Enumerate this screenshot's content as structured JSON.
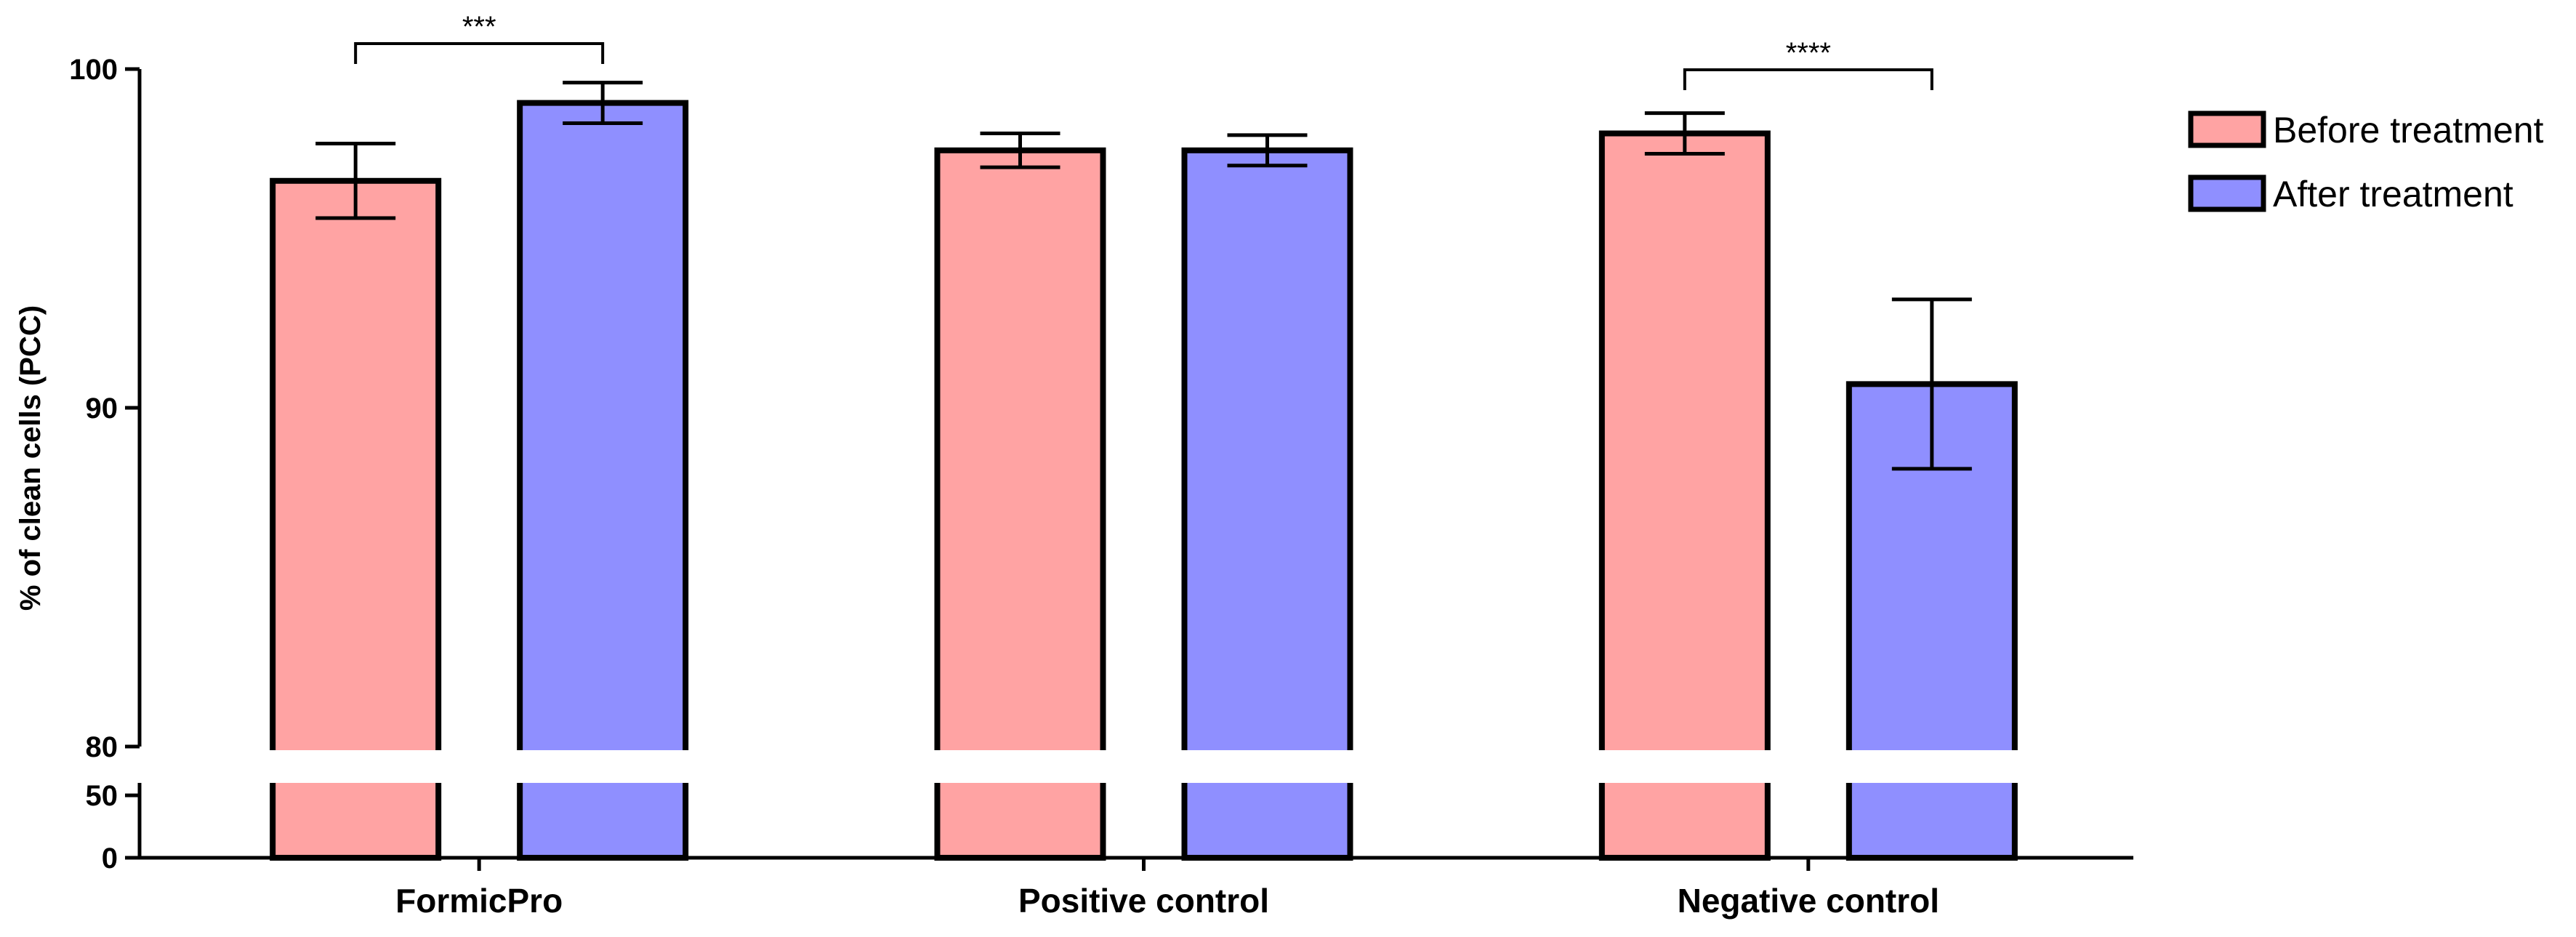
{
  "chart_data": {
    "type": "bar",
    "title": "",
    "xlabel": "",
    "ylabel": "% of clean cells (PCC)",
    "categories": [
      "FormicPro",
      "Positive control",
      "Negative control"
    ],
    "series": [
      {
        "name": "Before treatment",
        "color": "#FFA3A3",
        "values": [
          96.7,
          97.6,
          98.1
        ],
        "errors": [
          1.1,
          0.5,
          0.6
        ]
      },
      {
        "name": "After treatment",
        "color": "#8F8FFF",
        "values": [
          99.0,
          97.6,
          90.7
        ],
        "errors": [
          0.6,
          0.45,
          2.5
        ]
      }
    ],
    "y_axis": {
      "broken": true,
      "lower_segment": {
        "range": [
          0,
          60
        ],
        "ticks": [
          0,
          50
        ]
      },
      "upper_segment": {
        "range": [
          80,
          100
        ],
        "ticks": [
          80,
          90,
          100
        ]
      }
    },
    "significance": [
      {
        "category": "FormicPro",
        "label": "***"
      },
      {
        "category": "Negative control",
        "label": "****"
      }
    ],
    "legend_position": "right"
  }
}
